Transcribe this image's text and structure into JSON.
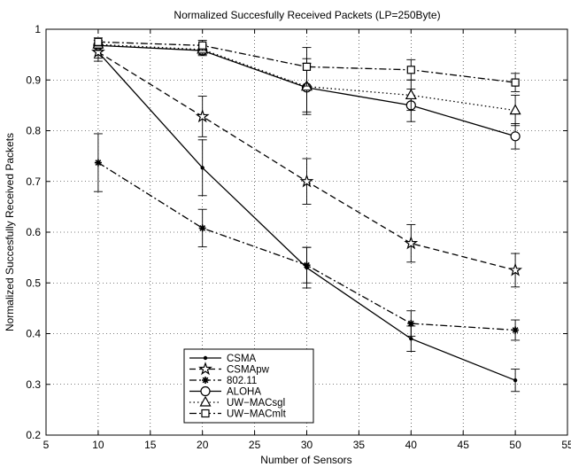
{
  "chart_data": {
    "type": "line",
    "title": "Normalized Succesfully Received Packets (LP=250Byte)",
    "xlabel": "Number of Sensors",
    "ylabel": "Normalized Succesfully Received Packets",
    "xlim": [
      5,
      55
    ],
    "ylim": [
      0.2,
      1.0
    ],
    "xticks": [
      "5",
      "10",
      "15",
      "20",
      "25",
      "30",
      "35",
      "40",
      "45",
      "50",
      "55"
    ],
    "yticks": [
      "0.2",
      "0.3",
      "0.4",
      "0.5",
      "0.6",
      "0.7",
      "0.8",
      "0.9",
      "1"
    ],
    "grid": "dotted",
    "legend_position": "bottom-left",
    "x": [
      10,
      20,
      30,
      40,
      50
    ],
    "series": [
      {
        "name": "CSMA",
        "marker": "dot",
        "line": "solid",
        "values": [
          0.955,
          0.727,
          0.53,
          0.39,
          0.308
        ],
        "err": [
          0.012,
          0.055,
          0.04,
          0.025,
          0.022
        ]
      },
      {
        "name": "CSMApw",
        "marker": "star",
        "line": "dashed",
        "values": [
          0.955,
          0.828,
          0.7,
          0.578,
          0.525
        ],
        "err": [
          0.018,
          0.04,
          0.045,
          0.037,
          0.033
        ]
      },
      {
        "name": "802.11",
        "marker": "asterisk",
        "line": "dashdot",
        "values": [
          0.737,
          0.608,
          0.535,
          0.42,
          0.407
        ],
        "err": [
          0.057,
          0.037,
          0.035,
          0.025,
          0.02
        ]
      },
      {
        "name": "ALOHA",
        "marker": "circle",
        "line": "solid",
        "values": [
          0.968,
          0.958,
          0.885,
          0.85,
          0.789
        ],
        "err": [
          0.01,
          0.01,
          0.048,
          0.032,
          0.025
        ]
      },
      {
        "name": "UW−MACsgl",
        "marker": "triangle",
        "line": "dotted",
        "values": [
          0.97,
          0.96,
          0.887,
          0.87,
          0.84
        ],
        "err": [
          0.008,
          0.01,
          0.055,
          0.03,
          0.03
        ]
      },
      {
        "name": "UW−MACmlt",
        "marker": "square",
        "line": "dashdot",
        "values": [
          0.975,
          0.968,
          0.926,
          0.92,
          0.895
        ],
        "err": [
          0.008,
          0.01,
          0.038,
          0.02,
          0.018
        ]
      }
    ]
  }
}
